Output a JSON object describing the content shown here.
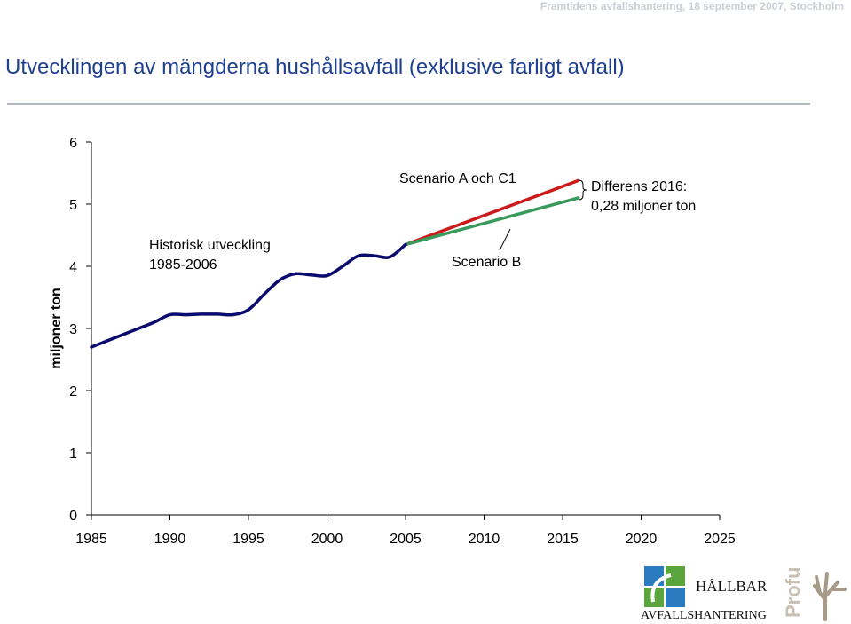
{
  "header": {
    "meta": "Framtidens avfallshantering, 18 september 2007, Stockholm",
    "title": "Utvecklingen av mängderna hushållsavfall (exklusive farligt avfall)"
  },
  "chart_data": {
    "type": "line",
    "xlim": [
      1985,
      2025
    ],
    "ylim": [
      0,
      6
    ],
    "xticks": [
      1985,
      1990,
      1995,
      2000,
      2005,
      2010,
      2015,
      2020,
      2025
    ],
    "yticks": [
      0,
      1,
      2,
      3,
      4,
      5,
      6
    ],
    "xlabel": "",
    "ylabel": "miljoner ton",
    "grid": false,
    "series": [
      {
        "name": "Historisk utveckling 1985-2006",
        "color": "#0b0b6e",
        "x": [
          1985,
          1986,
          1987,
          1988,
          1989,
          1990,
          1991,
          1992,
          1993,
          1994,
          1995,
          1996,
          1997,
          1998,
          1999,
          2000,
          2001,
          2002,
          2003,
          2004,
          2005
        ],
        "y": [
          2.7,
          2.8,
          2.9,
          3.0,
          3.1,
          3.22,
          3.22,
          3.23,
          3.23,
          3.22,
          3.3,
          3.55,
          3.78,
          3.88,
          3.86,
          3.85,
          4.0,
          4.17,
          4.17,
          4.15,
          4.35
        ]
      },
      {
        "name": "Scenario A och C1",
        "color": "#cc1a1a",
        "x": [
          2005,
          2016
        ],
        "y": [
          4.35,
          5.38
        ]
      },
      {
        "name": "Scenario B",
        "color": "#3a9a5b",
        "x": [
          2005,
          2016
        ],
        "y": [
          4.35,
          5.1
        ]
      }
    ],
    "annotations": {
      "historic_line1": "Historisk utveckling",
      "historic_line2": "1985-2006",
      "scenario_a": "Scenario A och C1",
      "scenario_b": "Scenario B",
      "diff_line1": "Differens 2016:",
      "diff_line2": "0,28  miljoner ton"
    }
  },
  "logos": {
    "hallbar_line1": "HÅLLBAR",
    "hallbar_line2": "AVFALLSHANTERING",
    "profu": "Profu"
  }
}
